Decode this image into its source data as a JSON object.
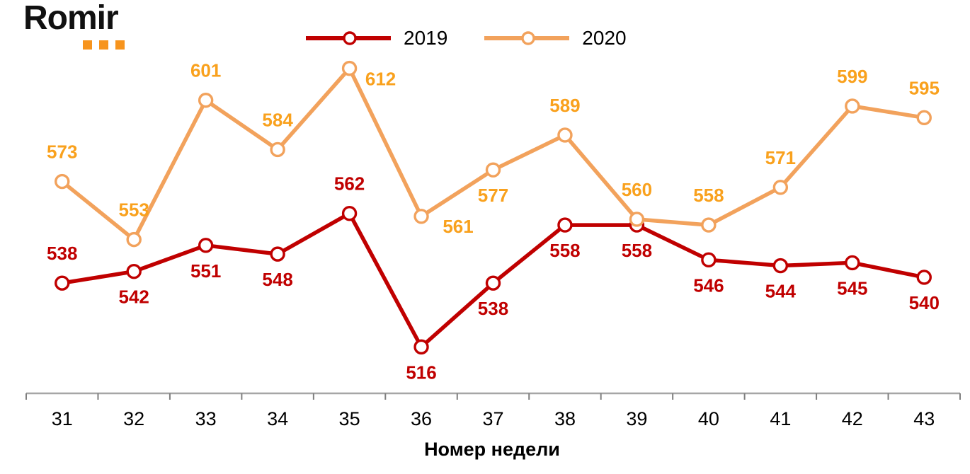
{
  "logo": {
    "text": "Romir",
    "dot_color": "#F7941D"
  },
  "legend": {
    "position": "top-center",
    "items": [
      {
        "label": "2019",
        "color": "#C00000"
      },
      {
        "label": "2020",
        "color": "#F2A25C"
      }
    ]
  },
  "xaxis_title": "Номер недели",
  "chart_data": {
    "type": "line",
    "title": "",
    "xlabel": "Номер недели",
    "ylabel": "",
    "categories": [
      "31",
      "32",
      "33",
      "34",
      "35",
      "36",
      "37",
      "38",
      "39",
      "40",
      "41",
      "42",
      "43"
    ],
    "ylim": [
      500,
      628
    ],
    "grid": false,
    "legend_position": "top-center",
    "axis_line_color": "#A6A6A6",
    "tick_color": "#7F7F7F",
    "tick_label_color": "#000000",
    "series": [
      {
        "name": "2019",
        "color": "#C00000",
        "label_color": "#C00000",
        "marker": "circle-white-fill",
        "values": [
          538,
          542,
          551,
          548,
          562,
          516,
          538,
          558,
          558,
          546,
          544,
          545,
          540
        ],
        "label_positions": [
          "above",
          "below",
          "below",
          "below",
          "above",
          "below",
          "below",
          "below",
          "below",
          "below",
          "below",
          "below",
          "below"
        ]
      },
      {
        "name": "2020",
        "color": "#F2A25C",
        "label_color": "#F9A11D",
        "marker": "circle-white-fill",
        "values": [
          573,
          553,
          601,
          584,
          612,
          561,
          577,
          589,
          560,
          558,
          571,
          599,
          595
        ],
        "label_positions": [
          "above",
          "above",
          "above",
          "above",
          "right",
          "below-right",
          "below",
          "above",
          "above",
          "above",
          "above",
          "above",
          "above"
        ]
      }
    ]
  }
}
